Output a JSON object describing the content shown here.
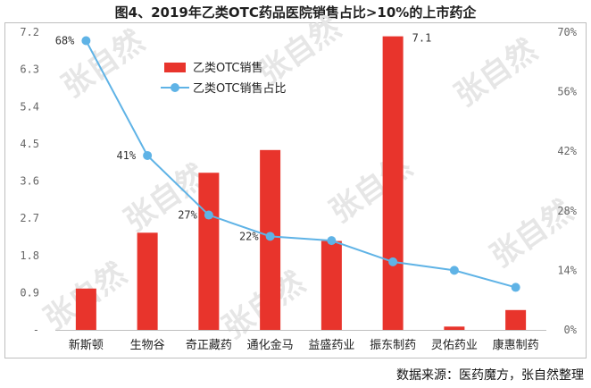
{
  "title": "图4、2019年乙类OTC药品医院销售占比>10%的上市药企",
  "source": "数据来源：医药魔方，张自然整理",
  "watermark": "张自然",
  "colors": {
    "bar": "#e8342c",
    "line": "#5fb3e6",
    "axis_text": "#666666",
    "label_text": "#333333"
  },
  "chart_data": {
    "type": "bar",
    "title": "图4、2019年乙类OTC药品医院销售占比>10%的上市药企",
    "categories": [
      "新斯顿",
      "生物谷",
      "奇正藏药",
      "通化金马",
      "益盛药业",
      "振东制药",
      "灵佑药业",
      "康惠制药"
    ],
    "series": [
      {
        "name": "乙类OTC销售",
        "type": "bar",
        "axis": "left",
        "values": [
          1.0,
          2.35,
          3.8,
          4.35,
          2.15,
          7.1,
          0.08,
          0.48
        ]
      },
      {
        "name": "乙类OTC销售占比",
        "type": "line",
        "axis": "right",
        "unit": "%",
        "values": [
          68,
          41,
          27,
          22,
          21,
          16,
          14,
          10
        ]
      }
    ],
    "data_labels": [
      {
        "series": 1,
        "index": 0,
        "text": "68%"
      },
      {
        "series": 1,
        "index": 1,
        "text": "41%"
      },
      {
        "series": 1,
        "index": 2,
        "text": "27%"
      },
      {
        "series": 1,
        "index": 3,
        "text": "22%"
      },
      {
        "series": 0,
        "index": 5,
        "text": "7.1"
      }
    ],
    "y_left": {
      "ticks": [
        "-",
        "0.9",
        "1.8",
        "2.7",
        "3.6",
        "4.5",
        "5.4",
        "6.3",
        "7.2"
      ],
      "ylim": [
        0,
        7.2
      ]
    },
    "y_right": {
      "ticks": [
        "0%",
        "14%",
        "28%",
        "42%",
        "56%",
        "70%"
      ],
      "ylim": [
        0,
        70
      ]
    },
    "grid": false,
    "legend_position": "top-left"
  }
}
